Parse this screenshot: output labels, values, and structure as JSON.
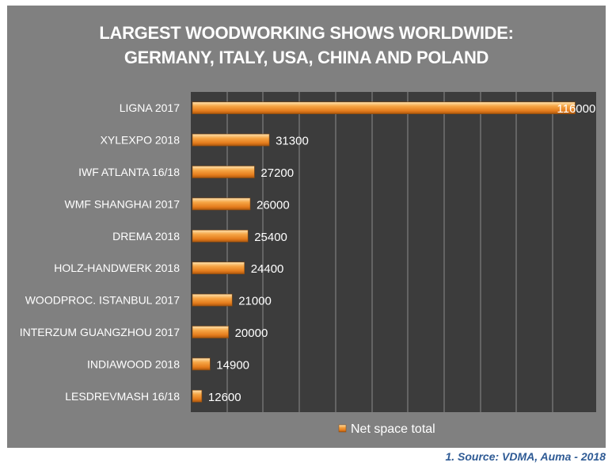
{
  "title_lines": [
    "LARGEST WOODWORKING SHOWS WORLDWIDE:",
    "GERMANY, ITALY, USA, CHINA AND POLAND"
  ],
  "source": "1. Source: VDMA, Auma - 2018",
  "colors": {
    "panel": "#808080",
    "plot": "#3c3c3c",
    "bar_light": "#fcd9a0",
    "bar_mid": "#f49a2e",
    "bar_dark": "#b85f0f",
    "text": "#ffffff",
    "source": "#2f5b95"
  },
  "chart_data": {
    "type": "bar",
    "orientation": "horizontal",
    "categories": [
      "LIGNA 2017",
      "XYLEXPO 2018",
      "IWF ATLANTA 16/18",
      "WMF SHANGHAI 2017",
      "DREMA 2018",
      "HOLZ-HANDWERK 2018",
      "WOODPROC. ISTANBUL 2017",
      "INTERZUM GUANGZHOU 2017",
      "INDIAWOOD 2018",
      "LESDREVMASH 16/18"
    ],
    "series": [
      {
        "name": "Net space total",
        "values": [
          116000,
          31300,
          27200,
          26000,
          25400,
          24400,
          21000,
          20000,
          14900,
          12600
        ],
        "labels": [
          "116000",
          "31300",
          "27200",
          "26000",
          "25400",
          "24400",
          "21000",
          "20000",
          "14900",
          "12600"
        ]
      }
    ],
    "bar_scale_min": 10000,
    "bar_scale_max": 117000,
    "gridline_count": 10,
    "legend_position": "bottom",
    "grid": true
  }
}
